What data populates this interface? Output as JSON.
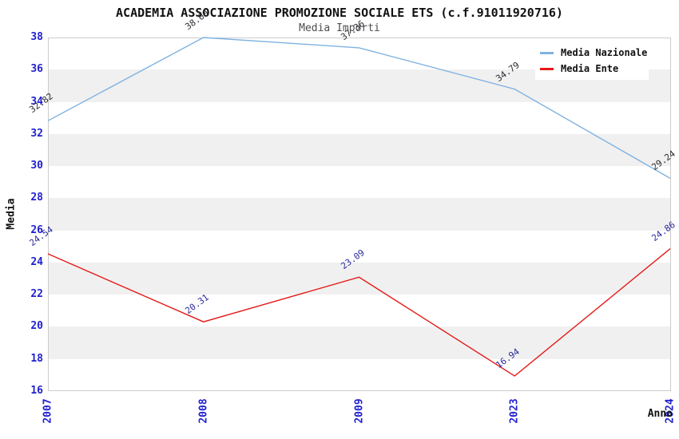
{
  "header": {
    "title": "ACADEMIA ASSOCIAZIONE PROMOZIONE SOCIALE ETS (c.f.91011920716)",
    "subtitle": "Media Importi"
  },
  "chart_data": {
    "type": "line",
    "title": "ACADEMIA ASSOCIAZIONE PROMOZIONE SOCIALE ETS (c.f.91011920716)",
    "subtitle": "Media Importi",
    "categories": [
      "2007",
      "2008",
      "2009",
      "2023",
      "2024"
    ],
    "series": [
      {
        "name": "Media Nazionale",
        "color": "#7fb2e1",
        "label_color": "#2b2b33",
        "values": [
          32.82,
          38.0,
          37.36,
          34.79,
          29.24
        ]
      },
      {
        "name": "Media Ente",
        "color": "#e51818",
        "label_color": "#2a2a9a",
        "values": [
          24.54,
          20.31,
          23.09,
          16.94,
          24.86
        ]
      }
    ],
    "xlabel": "Anno",
    "ylabel": "Media",
    "ylim": [
      16,
      38
    ],
    "ytick_step": 2,
    "yticks": [
      16,
      18,
      20,
      22,
      24,
      26,
      28,
      30,
      32,
      34,
      36,
      38
    ],
    "grid": "alternating-horizontal-bands",
    "band_color": "#f0f0f0",
    "plot_border_color": "#cccccc",
    "axis_tick_color": "#2020d0",
    "legend_position": "top-right",
    "point_label_decimals": 2
  }
}
